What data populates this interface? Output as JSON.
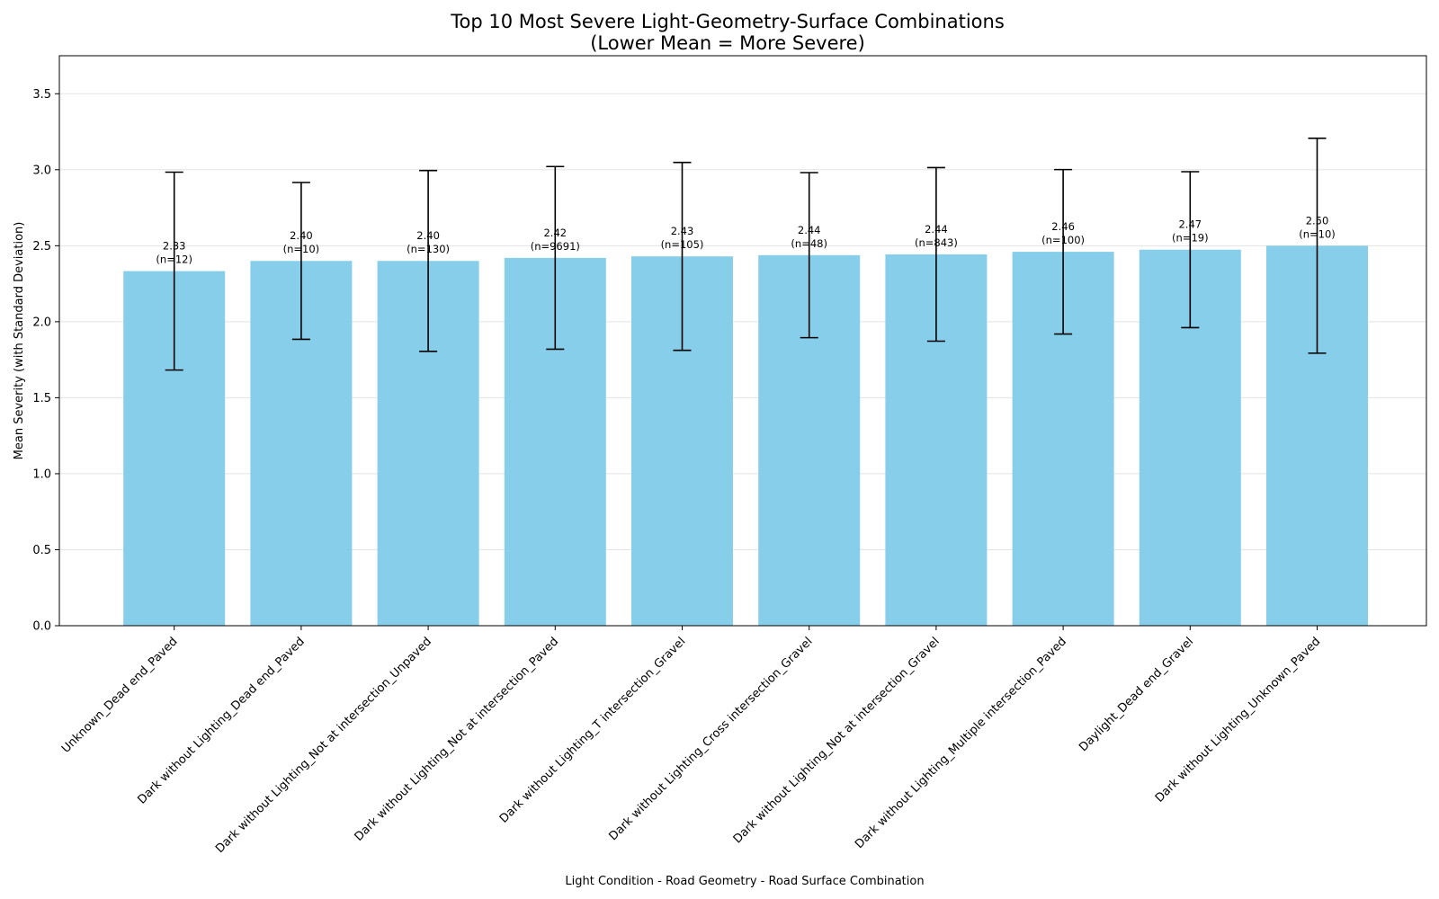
{
  "chart_data": {
    "type": "bar",
    "title_line1": "Top 10 Most Severe Light-Geometry-Surface Combinations",
    "title_line2": "(Lower Mean = More Severe)",
    "xlabel": "Light Condition - Road Geometry - Road Surface Combination",
    "ylabel": "Mean Severity (with Standard Deviation)",
    "ylim": [
      0,
      3.75
    ],
    "yticks": [
      "0.0",
      "0.5",
      "1.0",
      "1.5",
      "2.0",
      "2.5",
      "3.0",
      "3.5"
    ],
    "grid": "y-axis, light gray",
    "bar_color": "#87CEEB",
    "categories": [
      "Unknown_Dead end_Paved",
      "Dark without Lighting_Dead end_Paved",
      "Dark without Lighting_Not at intersection_Unpaved",
      "Dark without Lighting_Not at intersection_Paved",
      "Dark without Lighting_T intersection_Gravel",
      "Dark without Lighting_Cross intersection_Gravel",
      "Dark without Lighting_Not at intersection_Gravel",
      "Dark without Lighting_Multiple intersection_Paved",
      "Daylight_Dead end_Gravel",
      "Dark without Lighting_Unknown_Paved"
    ],
    "values": [
      2.333,
      2.4,
      2.4,
      2.42,
      2.43,
      2.438,
      2.443,
      2.46,
      2.474,
      2.5
    ],
    "std": [
      0.651,
      0.516,
      0.595,
      0.601,
      0.618,
      0.543,
      0.571,
      0.541,
      0.513,
      0.707
    ],
    "value_labels": [
      "2.33",
      "2.40",
      "2.40",
      "2.42",
      "2.43",
      "2.44",
      "2.44",
      "2.46",
      "2.47",
      "2.50"
    ],
    "n_labels": [
      "(n=12)",
      "(n=10)",
      "(n=130)",
      "(n=9691)",
      "(n=105)",
      "(n=48)",
      "(n=843)",
      "(n=100)",
      "(n=19)",
      "(n=10)"
    ]
  }
}
